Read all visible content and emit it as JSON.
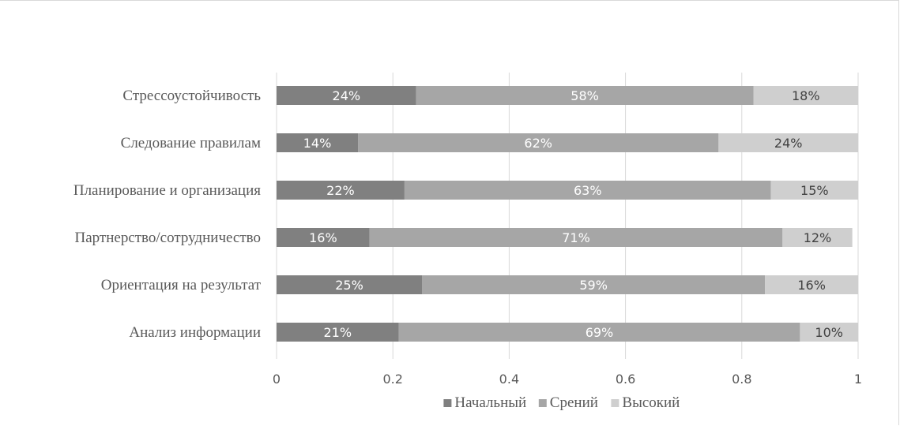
{
  "chart_data": {
    "type": "bar",
    "orientation": "horizontal",
    "stacked": true,
    "categories": [
      "Стрессоустойчивость",
      "Следование правилам",
      "Планирование и организация",
      "Партнерство/сотрудничество",
      "Ориентация на результат",
      "Анализ информации"
    ],
    "series": [
      {
        "name": "Начальный",
        "color": "#808080",
        "label_color": "#ffffff",
        "values": [
          0.24,
          0.14,
          0.22,
          0.16,
          0.25,
          0.21
        ],
        "labels": [
          "24%",
          "14%",
          "22%",
          "16%",
          "25%",
          "21%"
        ]
      },
      {
        "name": "Срений",
        "color": "#a6a6a6",
        "label_color": "#ffffff",
        "values": [
          0.58,
          0.62,
          0.63,
          0.71,
          0.59,
          0.69
        ],
        "labels": [
          "58%",
          "62%",
          "63%",
          "71%",
          "59%",
          "69%"
        ]
      },
      {
        "name": "Высокий",
        "color": "#cfcfcf",
        "label_color": "#404040",
        "values": [
          0.18,
          0.24,
          0.15,
          0.12,
          0.16,
          0.1
        ],
        "labels": [
          "18%",
          "24%",
          "15%",
          "12%",
          "16%",
          "10%"
        ]
      }
    ],
    "xlim": [
      0,
      1
    ],
    "xticks": [
      0,
      0.2,
      0.4,
      0.6,
      0.8,
      1
    ],
    "xtick_labels": [
      "0",
      "0.2",
      "0.4",
      "0.6",
      "0.8",
      "1"
    ],
    "grid": true,
    "legend_position": "bottom",
    "title": "",
    "xlabel": "",
    "ylabel": ""
  }
}
